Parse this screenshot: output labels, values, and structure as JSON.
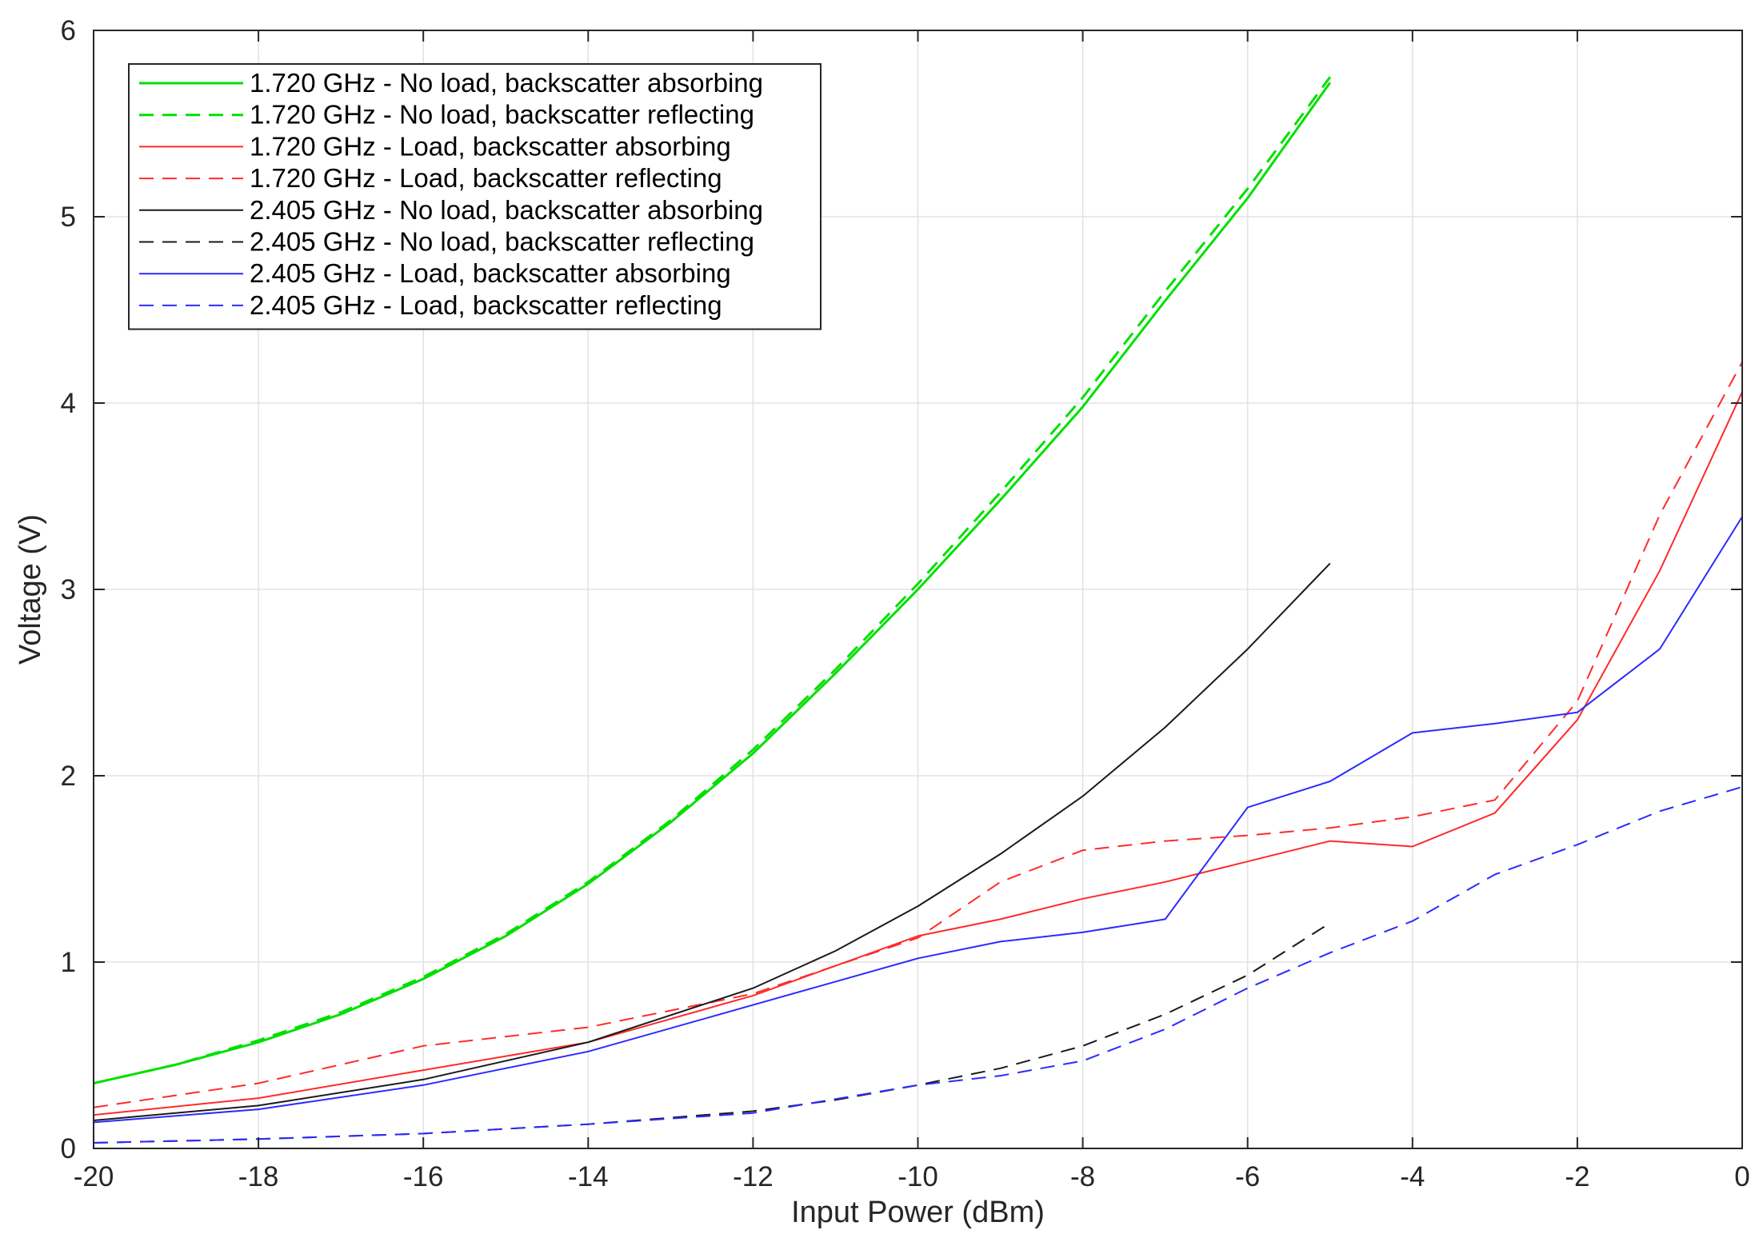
{
  "chart_data": {
    "type": "line",
    "title": "",
    "xlabel": "Input Power (dBm)",
    "ylabel": "Voltage (V)",
    "xlim": [
      -20,
      0
    ],
    "ylim": [
      0,
      6
    ],
    "xticks": [
      -20,
      -18,
      -16,
      -14,
      -12,
      -10,
      -8,
      -6,
      -4,
      -2,
      0
    ],
    "yticks": [
      0,
      1,
      2,
      3,
      4,
      5,
      6
    ],
    "grid": true,
    "legend_position": "top-left",
    "series": [
      {
        "name": "1.720 GHz - No load, backscatter absorbing",
        "color": "#00e000",
        "dash": "solid",
        "width": 3,
        "x": [
          -20,
          -19,
          -18,
          -17,
          -16,
          -15,
          -14,
          -13,
          -12,
          -11,
          -10,
          -9,
          -8,
          -7,
          -6,
          -5
        ],
        "y": [
          0.35,
          0.45,
          0.57,
          0.72,
          0.91,
          1.14,
          1.42,
          1.75,
          2.12,
          2.55,
          3.0,
          3.48,
          3.98,
          4.55,
          5.1,
          5.72
        ]
      },
      {
        "name": "1.720 GHz - No load, backscatter reflecting",
        "color": "#00e000",
        "dash": "dashed",
        "width": 3,
        "x": [
          -20,
          -19,
          -18,
          -17,
          -16,
          -15,
          -14,
          -13,
          -12,
          -11,
          -10,
          -9,
          -8,
          -7,
          -6,
          -5
        ],
        "y": [
          0.35,
          0.45,
          0.58,
          0.73,
          0.92,
          1.15,
          1.43,
          1.76,
          2.14,
          2.57,
          3.03,
          3.52,
          4.03,
          4.6,
          5.15,
          5.75
        ]
      },
      {
        "name": "1.720 GHz - Load, backscatter absorbing",
        "color": "#ff2a2a",
        "dash": "solid",
        "width": 2,
        "x": [
          -20,
          -18,
          -16,
          -14,
          -12,
          -10,
          -9,
          -8,
          -7,
          -6,
          -5,
          -4,
          -3,
          -2,
          -1,
          0
        ],
        "y": [
          0.18,
          0.27,
          0.42,
          0.57,
          0.82,
          1.14,
          1.23,
          1.34,
          1.43,
          1.54,
          1.65,
          1.62,
          1.8,
          2.3,
          3.1,
          4.06
        ]
      },
      {
        "name": "1.720 GHz - Load, backscatter reflecting",
        "color": "#ff2a2a",
        "dash": "dashed",
        "width": 2,
        "x": [
          -20,
          -18,
          -16,
          -14,
          -12,
          -10,
          -9,
          -8,
          -7,
          -6,
          -5,
          -4,
          -3,
          -2,
          -1,
          0
        ],
        "y": [
          0.22,
          0.35,
          0.55,
          0.65,
          0.83,
          1.13,
          1.43,
          1.6,
          1.65,
          1.68,
          1.72,
          1.78,
          1.87,
          2.4,
          3.4,
          4.22
        ]
      },
      {
        "name": "2.405 GHz - No load, backscatter absorbing",
        "color": "#1a1a1a",
        "dash": "solid",
        "width": 2,
        "x": [
          -20,
          -18,
          -16,
          -14,
          -12,
          -11,
          -10,
          -9,
          -8,
          -7,
          -6,
          -5
        ],
        "y": [
          0.15,
          0.23,
          0.37,
          0.57,
          0.86,
          1.06,
          1.3,
          1.58,
          1.89,
          2.26,
          2.68,
          3.14
        ]
      },
      {
        "name": "2.405 GHz - No load, backscatter reflecting",
        "color": "#1a1a1a",
        "dash": "dashed",
        "width": 2,
        "x": [
          -20,
          -18,
          -16,
          -14,
          -12,
          -11,
          -10,
          -9,
          -8,
          -7,
          -6,
          -5
        ],
        "y": [
          0.03,
          0.05,
          0.08,
          0.13,
          0.2,
          0.26,
          0.34,
          0.43,
          0.55,
          0.72,
          0.93,
          1.21
        ]
      },
      {
        "name": "2.405 GHz - Load, backscatter absorbing",
        "color": "#2b2bff",
        "dash": "solid",
        "width": 2,
        "x": [
          -20,
          -18,
          -16,
          -14,
          -12,
          -10,
          -9,
          -8,
          -7,
          -6,
          -5,
          -4,
          -3,
          -2,
          -1,
          0
        ],
        "y": [
          0.14,
          0.21,
          0.34,
          0.52,
          0.77,
          1.02,
          1.11,
          1.16,
          1.23,
          1.83,
          1.97,
          2.23,
          2.28,
          2.34,
          2.68,
          3.39
        ]
      },
      {
        "name": "2.405 GHz - Load, backscatter reflecting",
        "color": "#2b2bff",
        "dash": "dashed",
        "width": 2,
        "x": [
          -20,
          -18,
          -16,
          -14,
          -12,
          -10,
          -9,
          -8,
          -7,
          -6,
          -5,
          -4,
          -3,
          -2,
          -1,
          0
        ],
        "y": [
          0.03,
          0.05,
          0.08,
          0.13,
          0.19,
          0.34,
          0.39,
          0.47,
          0.64,
          0.86,
          1.05,
          1.22,
          1.47,
          1.63,
          1.81,
          1.94
        ]
      }
    ]
  }
}
